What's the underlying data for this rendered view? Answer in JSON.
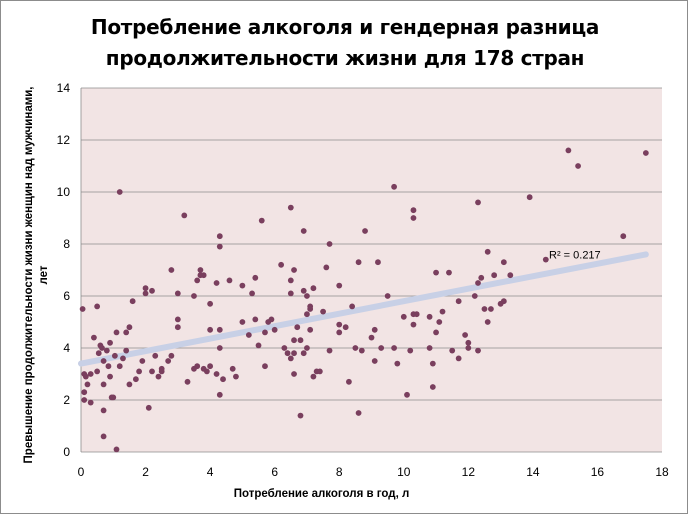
{
  "chart_data": {
    "type": "scatter",
    "title_lines": [
      "Потребление алкоголя и гендерная разница",
      "продолжительности жизни для 178 стран"
    ],
    "xlabel": "Потребление алкоголя в год, л",
    "ylabel_lines": [
      "Превышение продолжительности жизни женщин над мужчинами,",
      "лет"
    ],
    "xlim": [
      0,
      18
    ],
    "ylim": [
      0,
      14
    ],
    "x_ticks": [
      "0",
      "2",
      "4",
      "6",
      "8",
      "10",
      "12",
      "14",
      "16",
      "18"
    ],
    "y_ticks": [
      "0",
      "2",
      "4",
      "6",
      "8",
      "10",
      "12",
      "14"
    ],
    "grid": "horizontal",
    "colors": {
      "plot_background": "#f2e4e4",
      "point": "#7a3f5e",
      "trendline": "#c8d0e6",
      "gridline": "#8c8c8c"
    },
    "trendline": {
      "type": "linear",
      "x": [
        0,
        17.5
      ],
      "y": [
        3.4,
        7.6
      ]
    },
    "annotation": {
      "text": "R² = 0.217",
      "x": 15.3,
      "y": 7.6
    },
    "points": [
      [
        0.05,
        5.5
      ],
      [
        0.1,
        3.0
      ],
      [
        0.1,
        2.3
      ],
      [
        0.1,
        2.0
      ],
      [
        0.2,
        2.6
      ],
      [
        0.3,
        3.0
      ],
      [
        0.3,
        1.9
      ],
      [
        0.15,
        2.9
      ],
      [
        0.4,
        4.4
      ],
      [
        0.5,
        3.1
      ],
      [
        0.5,
        5.6
      ],
      [
        0.55,
        3.8
      ],
      [
        0.6,
        4.1
      ],
      [
        0.65,
        4.0
      ],
      [
        0.7,
        3.5
      ],
      [
        0.7,
        2.6
      ],
      [
        0.7,
        1.6
      ],
      [
        0.7,
        0.6
      ],
      [
        0.8,
        3.9
      ],
      [
        0.85,
        3.3
      ],
      [
        0.9,
        2.9
      ],
      [
        0.9,
        4.2
      ],
      [
        0.95,
        2.1
      ],
      [
        1.0,
        2.1
      ],
      [
        1.05,
        3.7
      ],
      [
        1.1,
        0.1
      ],
      [
        1.1,
        4.6
      ],
      [
        1.2,
        10.0
      ],
      [
        1.2,
        3.3
      ],
      [
        1.3,
        3.6
      ],
      [
        1.4,
        4.6
      ],
      [
        1.4,
        3.9
      ],
      [
        1.5,
        2.6
      ],
      [
        1.5,
        4.8
      ],
      [
        1.6,
        5.8
      ],
      [
        1.7,
        2.8
      ],
      [
        1.8,
        3.1
      ],
      [
        1.9,
        3.5
      ],
      [
        2.0,
        6.3
      ],
      [
        2.0,
        6.1
      ],
      [
        2.1,
        1.7
      ],
      [
        2.2,
        3.1
      ],
      [
        2.2,
        6.2
      ],
      [
        2.3,
        3.7
      ],
      [
        2.4,
        2.9
      ],
      [
        2.5,
        3.2
      ],
      [
        2.5,
        3.1
      ],
      [
        2.7,
        3.5
      ],
      [
        2.8,
        3.7
      ],
      [
        2.8,
        7.0
      ],
      [
        3.0,
        6.1
      ],
      [
        3.0,
        4.8
      ],
      [
        3.0,
        5.1
      ],
      [
        3.2,
        9.1
      ],
      [
        3.3,
        2.7
      ],
      [
        3.5,
        6.0
      ],
      [
        3.5,
        3.2
      ],
      [
        3.6,
        6.6
      ],
      [
        3.6,
        3.3
      ],
      [
        3.7,
        7.0
      ],
      [
        3.7,
        6.8
      ],
      [
        3.8,
        3.2
      ],
      [
        3.8,
        6.8
      ],
      [
        3.9,
        3.1
      ],
      [
        4.0,
        3.3
      ],
      [
        4.0,
        5.7
      ],
      [
        4.0,
        4.7
      ],
      [
        4.2,
        6.5
      ],
      [
        4.2,
        3.0
      ],
      [
        4.3,
        8.3
      ],
      [
        4.3,
        7.9
      ],
      [
        4.3,
        4.0
      ],
      [
        4.3,
        4.7
      ],
      [
        4.3,
        2.2
      ],
      [
        4.4,
        2.8
      ],
      [
        4.6,
        6.6
      ],
      [
        4.7,
        3.2
      ],
      [
        4.8,
        2.9
      ],
      [
        5.0,
        6.4
      ],
      [
        5.0,
        5.0
      ],
      [
        5.2,
        4.5
      ],
      [
        5.3,
        6.1
      ],
      [
        5.4,
        6.7
      ],
      [
        5.4,
        5.1
      ],
      [
        5.5,
        4.1
      ],
      [
        5.6,
        8.9
      ],
      [
        5.7,
        3.3
      ],
      [
        5.7,
        4.6
      ],
      [
        5.8,
        5.0
      ],
      [
        5.9,
        5.1
      ],
      [
        6.0,
        4.7
      ],
      [
        6.2,
        7.2
      ],
      [
        6.3,
        4.0
      ],
      [
        6.4,
        3.8
      ],
      [
        6.5,
        3.6
      ],
      [
        6.5,
        9.4
      ],
      [
        6.5,
        6.1
      ],
      [
        6.5,
        6.6
      ],
      [
        6.6,
        3.8
      ],
      [
        6.6,
        7.0
      ],
      [
        6.6,
        4.3
      ],
      [
        6.6,
        3.0
      ],
      [
        6.7,
        4.8
      ],
      [
        6.8,
        1.4
      ],
      [
        6.8,
        4.3
      ],
      [
        6.9,
        8.5
      ],
      [
        6.9,
        6.2
      ],
      [
        6.9,
        3.8
      ],
      [
        7.0,
        4.0
      ],
      [
        7.0,
        5.3
      ],
      [
        7.0,
        6.0
      ],
      [
        7.1,
        4.7
      ],
      [
        7.1,
        5.6
      ],
      [
        7.1,
        5.5
      ],
      [
        7.2,
        6.3
      ],
      [
        7.2,
        2.9
      ],
      [
        7.3,
        3.1
      ],
      [
        7.4,
        3.1
      ],
      [
        7.5,
        5.4
      ],
      [
        7.6,
        7.1
      ],
      [
        7.7,
        8.0
      ],
      [
        7.7,
        3.9
      ],
      [
        8.0,
        4.9
      ],
      [
        8.0,
        4.6
      ],
      [
        8.0,
        6.4
      ],
      [
        8.2,
        4.8
      ],
      [
        8.3,
        2.7
      ],
      [
        8.4,
        5.6
      ],
      [
        8.5,
        4.0
      ],
      [
        8.6,
        7.3
      ],
      [
        8.6,
        1.5
      ],
      [
        8.7,
        3.9
      ],
      [
        8.8,
        8.5
      ],
      [
        9.0,
        4.4
      ],
      [
        9.1,
        4.7
      ],
      [
        9.1,
        3.5
      ],
      [
        9.2,
        7.3
      ],
      [
        9.3,
        4.0
      ],
      [
        9.5,
        6.0
      ],
      [
        9.7,
        10.2
      ],
      [
        9.7,
        4.0
      ],
      [
        9.8,
        3.4
      ],
      [
        10.0,
        5.2
      ],
      [
        10.1,
        2.2
      ],
      [
        10.2,
        3.9
      ],
      [
        10.3,
        9.0
      ],
      [
        10.3,
        9.3
      ],
      [
        10.3,
        4.9
      ],
      [
        10.3,
        5.3
      ],
      [
        10.4,
        5.3
      ],
      [
        10.8,
        4.0
      ],
      [
        10.8,
        5.2
      ],
      [
        10.9,
        3.4
      ],
      [
        10.9,
        2.5
      ],
      [
        11.0,
        6.9
      ],
      [
        11.0,
        4.6
      ],
      [
        11.1,
        5.0
      ],
      [
        11.2,
        5.4
      ],
      [
        11.4,
        6.9
      ],
      [
        11.5,
        3.9
      ],
      [
        11.7,
        3.6
      ],
      [
        11.7,
        5.8
      ],
      [
        11.9,
        4.5
      ],
      [
        12.0,
        4.2
      ],
      [
        12.0,
        4.0
      ],
      [
        12.2,
        6.0
      ],
      [
        12.3,
        3.9
      ],
      [
        12.3,
        6.5
      ],
      [
        12.3,
        9.6
      ],
      [
        12.4,
        6.7
      ],
      [
        12.5,
        5.5
      ],
      [
        12.6,
        7.7
      ],
      [
        12.6,
        5.0
      ],
      [
        12.7,
        5.5
      ],
      [
        12.8,
        6.8
      ],
      [
        13.0,
        5.7
      ],
      [
        13.1,
        5.8
      ],
      [
        13.1,
        7.3
      ],
      [
        13.3,
        6.8
      ],
      [
        13.9,
        9.8
      ],
      [
        14.4,
        7.4
      ],
      [
        15.1,
        11.6
      ],
      [
        15.4,
        11.0
      ],
      [
        16.8,
        8.3
      ],
      [
        17.5,
        11.5
      ]
    ]
  }
}
